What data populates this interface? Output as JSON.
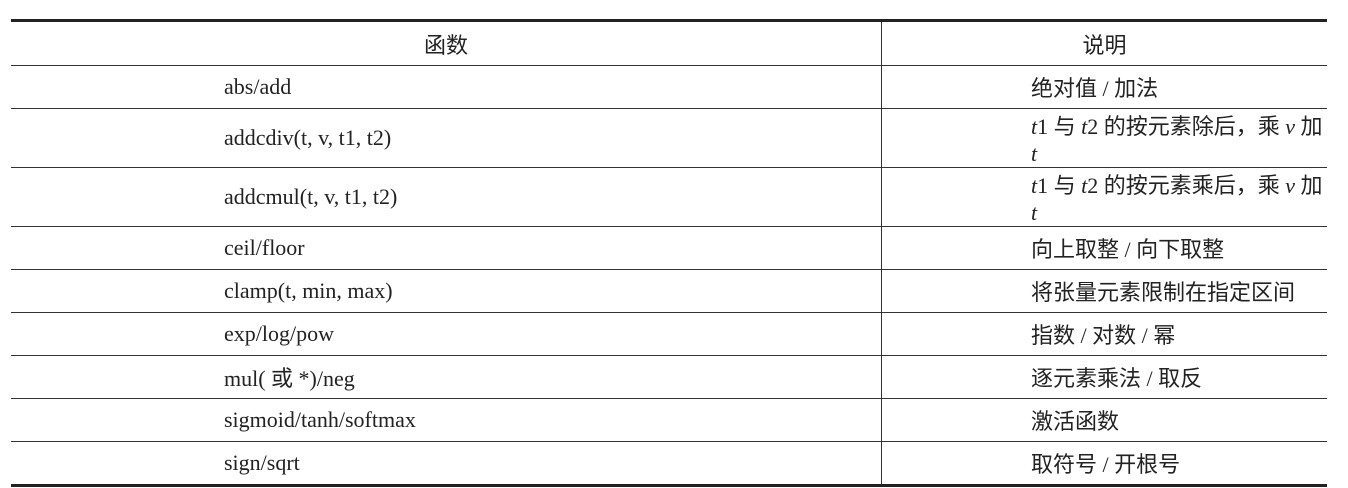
{
  "table": {
    "headers": [
      "函数",
      "说明"
    ],
    "rows": [
      {
        "func": "abs/add",
        "desc": "绝对值 / 加法"
      },
      {
        "func": "addcdiv(t, v, t1, t2)",
        "desc_parts": [
          "t",
          "1 与 ",
          "t",
          "2 的按元素除后，乘 ",
          "v",
          " 加 ",
          "t"
        ]
      },
      {
        "func": "addcmul(t, v, t1, t2)",
        "desc_parts": [
          "t",
          "1 与 ",
          "t",
          "2 的按元素乘后，乘 ",
          "v",
          " 加 ",
          "t"
        ]
      },
      {
        "func": "ceil/floor",
        "desc": "向上取整 / 向下取整"
      },
      {
        "func": "clamp(t, min, max)",
        "desc": "将张量元素限制在指定区间"
      },
      {
        "func": "exp/log/pow",
        "desc": "指数 / 对数 / 幂"
      },
      {
        "func": "mul( 或 *)/neg",
        "desc": "逐元素乘法 / 取反"
      },
      {
        "func": "sigmoid/tanh/softmax",
        "desc": "激活函数"
      },
      {
        "func": "sign/sqrt",
        "desc": "取符号 / 开根号"
      }
    ]
  }
}
